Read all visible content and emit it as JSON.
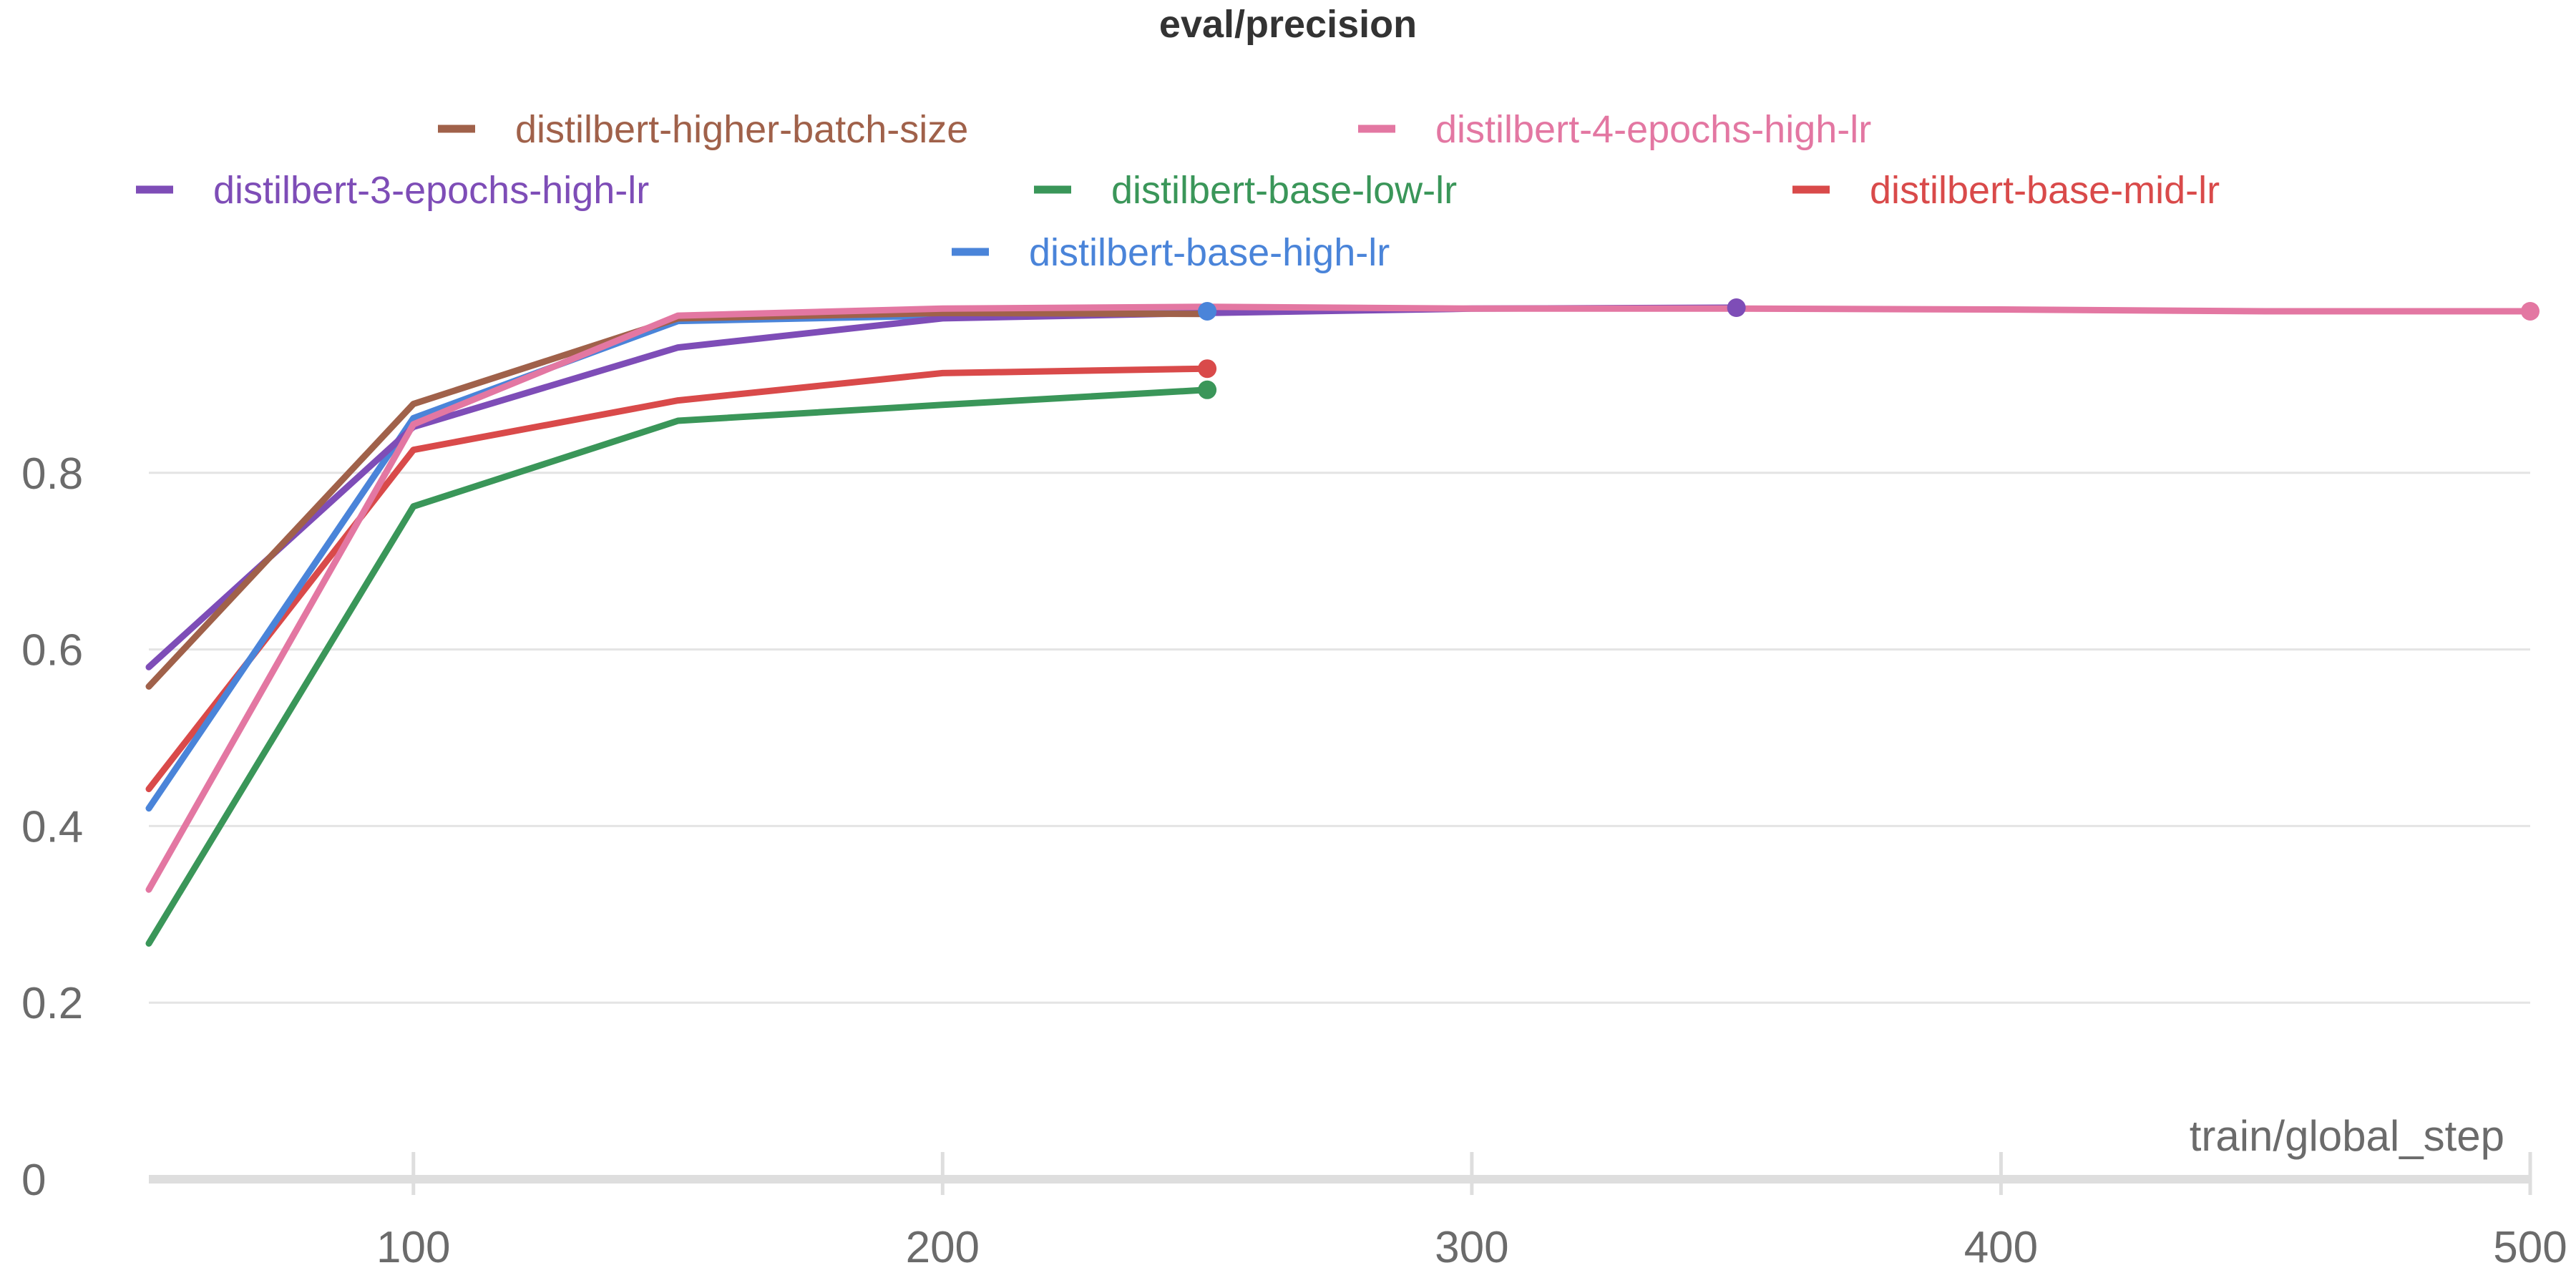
{
  "chart_data": {
    "type": "line",
    "title": "eval/precision",
    "xlabel": "train/global_step",
    "ylabel": "",
    "xlim": [
      50,
      500
    ],
    "ylim": [
      0,
      1.0
    ],
    "xticks": [
      100,
      200,
      300,
      400,
      500
    ],
    "yticks": [
      0,
      0.2,
      0.4,
      0.6,
      0.8
    ],
    "ytick_labels": [
      "0",
      "0.2",
      "0.4",
      "0.6",
      "0.8"
    ],
    "xtick_labels": [
      "100",
      "200",
      "300",
      "400",
      "500"
    ],
    "grid": "horizontal",
    "legend_position": "top-center",
    "series": [
      {
        "name": "distilbert-higher-batch-size",
        "color": "#a0614a",
        "x": [
          50,
          100,
          150,
          200,
          250
        ],
        "y": [
          0.558,
          0.878,
          0.975,
          0.981,
          0.98
        ],
        "end_marker": false
      },
      {
        "name": "distilbert-4-epochs-high-lr",
        "color": "#e377a2",
        "x": [
          50,
          100,
          150,
          200,
          250,
          300,
          350,
          400,
          450,
          500
        ],
        "y": [
          0.328,
          0.855,
          0.978,
          0.986,
          0.988,
          0.986,
          0.986,
          0.985,
          0.983,
          0.983
        ],
        "end_marker": true
      },
      {
        "name": "distilbert-3-epochs-high-lr",
        "color": "#7e4db7",
        "x": [
          50,
          100,
          150,
          200,
          250,
          300,
          350
        ],
        "y": [
          0.58,
          0.852,
          0.942,
          0.975,
          0.981,
          0.986,
          0.987
        ],
        "end_marker": true
      },
      {
        "name": "distilbert-base-low-lr",
        "color": "#3a9659",
        "x": [
          50,
          100,
          150,
          200,
          250
        ],
        "y": [
          0.267,
          0.762,
          0.859,
          0.877,
          0.894
        ],
        "end_marker": true
      },
      {
        "name": "distilbert-base-mid-lr",
        "color": "#d94a4a",
        "x": [
          50,
          100,
          150,
          200,
          250
        ],
        "y": [
          0.442,
          0.826,
          0.882,
          0.913,
          0.918
        ],
        "end_marker": true
      },
      {
        "name": "distilbert-base-high-lr",
        "color": "#4a84d9",
        "x": [
          50,
          100,
          150,
          200,
          250
        ],
        "y": [
          0.42,
          0.862,
          0.972,
          0.978,
          0.983
        ],
        "end_marker": true
      }
    ]
  }
}
